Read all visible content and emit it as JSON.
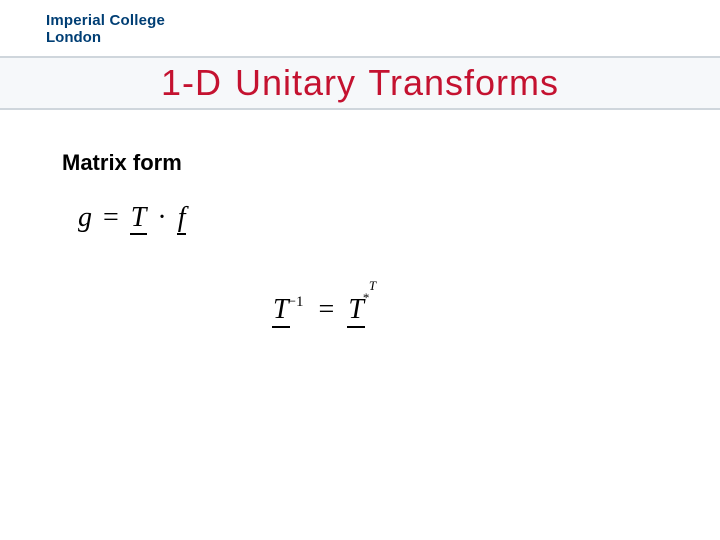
{
  "logo": {
    "line1": "Imperial College",
    "line2": "London",
    "color": "#003e74"
  },
  "title": {
    "text": "1-D Unitary Transforms",
    "color": "#c41230",
    "fontsize": 36
  },
  "subhead": {
    "text": "Matrix form",
    "fontsize": 22
  },
  "eq1": {
    "g": "g",
    "eq": "=",
    "T": "T",
    "dot": "·",
    "f": "f"
  },
  "eq2": {
    "T_lhs": "T",
    "sup_lhs": "−1",
    "eq": "=",
    "T_rhs": "T",
    "sup_rhs_top": "T",
    "sup_rhs_bot": "*"
  },
  "colors": {
    "background": "#ffffff",
    "band_border": "#cfd6dc",
    "band_bg": "#f6f8fa",
    "text": "#000000"
  }
}
